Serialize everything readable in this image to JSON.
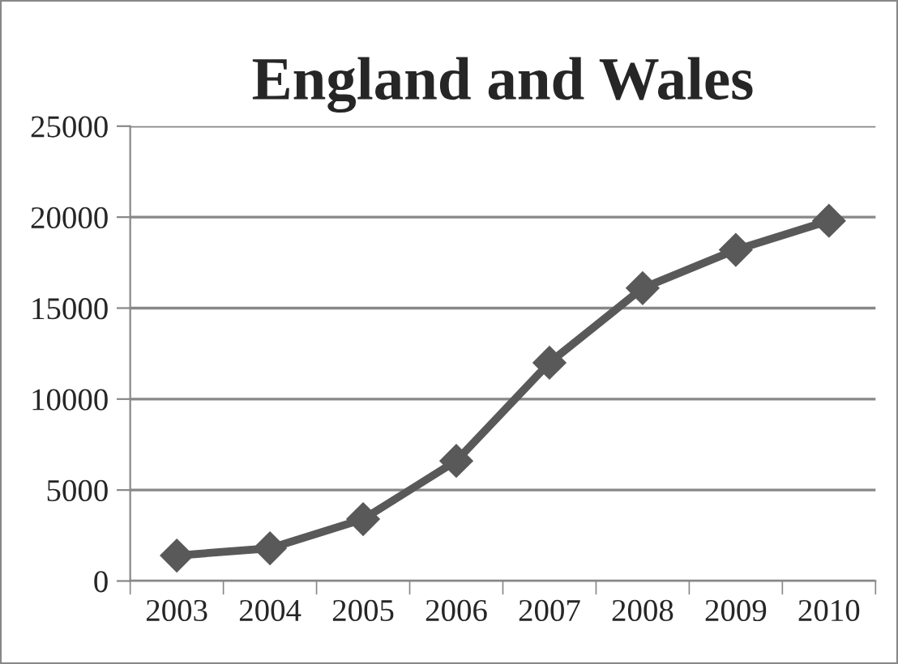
{
  "chart_data": {
    "type": "line",
    "title": "England and Wales",
    "categories": [
      "2003",
      "2004",
      "2005",
      "2006",
      "2007",
      "2008",
      "2009",
      "2010"
    ],
    "series": [
      {
        "color": "#595959",
        "values": [
          1400,
          1800,
          3400,
          6600,
          12000,
          16100,
          18200,
          19800
        ]
      }
    ],
    "ylim": [
      0,
      25000
    ],
    "yticks": [
      0,
      5000,
      10000,
      15000,
      20000,
      25000
    ],
    "grid": "y",
    "marker": "diamond",
    "line_style": "solid"
  }
}
